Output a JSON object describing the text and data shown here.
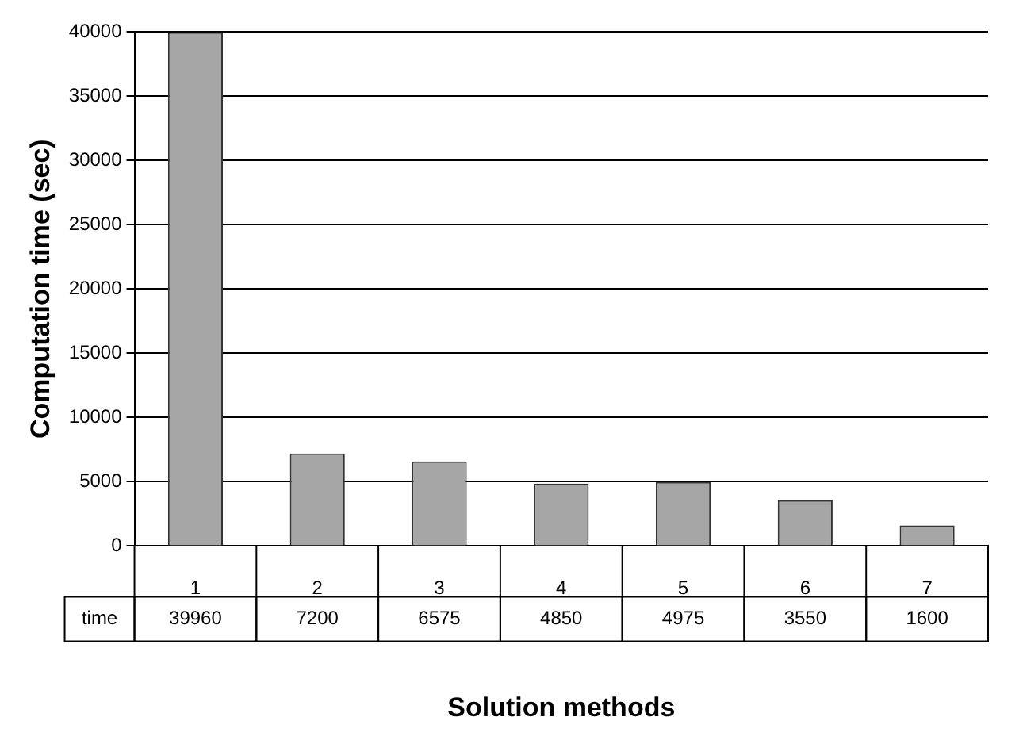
{
  "chart_data": {
    "type": "bar",
    "xlabel": "Solution methods",
    "ylabel": "Computation time (sec)",
    "categories": [
      "1",
      "2",
      "3",
      "4",
      "5",
      "6",
      "7"
    ],
    "series": [
      {
        "name": "time",
        "color": "#a6a6a6",
        "values": [
          39960,
          7200,
          6575,
          4850,
          4975,
          3550,
          1600
        ]
      }
    ],
    "ylim": [
      0,
      40000
    ],
    "yticks": [
      0,
      5000,
      10000,
      15000,
      20000,
      25000,
      30000,
      35000,
      40000
    ],
    "grid": "y",
    "legend": false,
    "data_labels": true
  }
}
